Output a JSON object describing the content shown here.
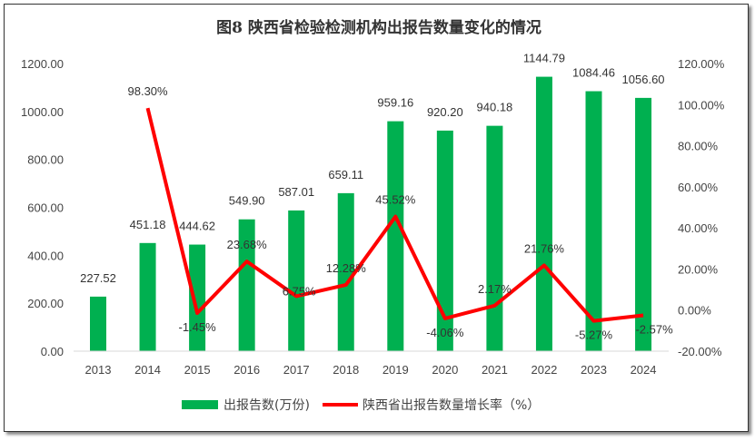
{
  "chart_data": {
    "type": "bar+line",
    "title": "图8  陕西省检验检测机构出报告数量变化的情况",
    "categories": [
      "2013",
      "2014",
      "2015",
      "2016",
      "2017",
      "2018",
      "2019",
      "2020",
      "2021",
      "2022",
      "2023",
      "2024"
    ],
    "series": [
      {
        "name": "出报告数(万份)",
        "type": "bar",
        "axis": "left",
        "color": "#00b050",
        "values": [
          227.52,
          451.18,
          444.62,
          549.9,
          587.01,
          659.11,
          959.16,
          920.2,
          940.18,
          1144.79,
          1084.46,
          1056.6
        ],
        "labels": [
          "227.52",
          "451.18",
          "444.62",
          "549.90",
          "587.01",
          "659.11",
          "959.16",
          "920.20",
          "940.18",
          "1144.79",
          "1084.46",
          "1056.60"
        ]
      },
      {
        "name": "陕西省出报告数量增长率（%）",
        "type": "line",
        "axis": "right",
        "color": "#ff0000",
        "values": [
          null,
          98.3,
          -1.45,
          23.68,
          6.75,
          12.28,
          45.52,
          -4.06,
          2.17,
          21.76,
          -5.27,
          -2.57
        ],
        "labels": [
          "",
          "98.30%",
          "-1.45%",
          "23.68%",
          "6.75%",
          "12.28%",
          "45.52%",
          "-4.06%",
          "2.17%",
          "21.76%",
          "-5.27%",
          "-2.57%"
        ]
      }
    ],
    "left_axis": {
      "ylim": [
        0,
        1200
      ],
      "ticks": [
        "0.00",
        "200.00",
        "400.00",
        "600.00",
        "800.00",
        "1000.00",
        "1200.00"
      ]
    },
    "right_axis": {
      "ylim": [
        -20,
        120
      ],
      "ticks": [
        "-20.00%",
        "0.00%",
        "20.00%",
        "40.00%",
        "60.00%",
        "80.00%",
        "100.00%",
        "120.00%"
      ]
    },
    "grid": false,
    "legend": "bottom"
  }
}
